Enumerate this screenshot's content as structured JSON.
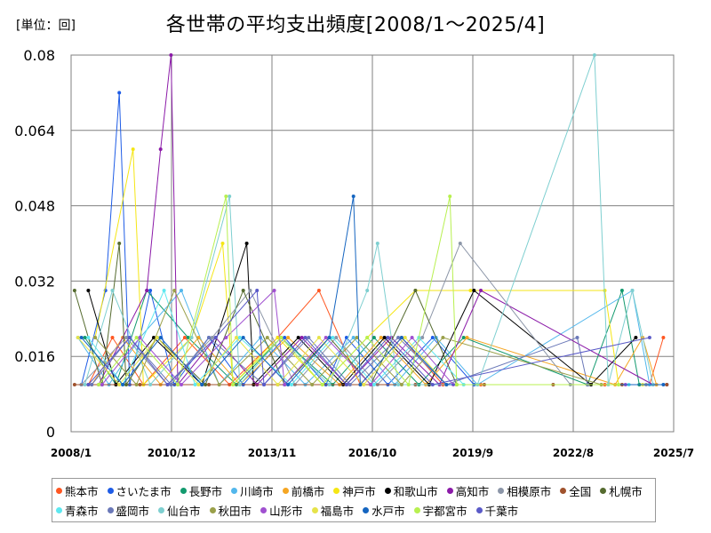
{
  "header": {
    "unit_label": "[単位：回]",
    "title": "各世帯の平均支出頻度[2008/1～2025/4]"
  },
  "chart_data": {
    "type": "line",
    "title": "各世帯の平均支出頻度[2008/1～2025/4]",
    "unit": "[単位：回]",
    "xlabel": "",
    "ylabel": "",
    "xlim": [
      "2008/1",
      "2025/7"
    ],
    "ylim": [
      0,
      0.08
    ],
    "grid": true,
    "legend_position": "bottom",
    "y_ticks": [
      "0",
      "0.016",
      "0.032",
      "0.048",
      "0.064",
      "0.08"
    ],
    "x_ticks": [
      "2008/1",
      "2010/12",
      "2013/11",
      "2016/10",
      "2019/9",
      "2022/8",
      "2025/7"
    ],
    "series": [
      {
        "name": "熊本市",
        "color": "#ff5722",
        "values": [
          [
            2008.5,
            0.01
          ],
          [
            2009.2,
            0.02
          ],
          [
            2010.1,
            0.01
          ],
          [
            2011.3,
            0.02
          ],
          [
            2012.6,
            0.01
          ],
          [
            2014.0,
            0.02
          ],
          [
            2015.2,
            0.03
          ],
          [
            2016.4,
            0.01
          ],
          [
            2017.6,
            0.02
          ],
          [
            2018.8,
            0.01
          ],
          [
            2019.9,
            0.01
          ],
          [
            2023.5,
            0.01
          ],
          [
            2024.8,
            0.01
          ],
          [
            2025.2,
            0.02
          ]
        ]
      },
      {
        "name": "さいたま市",
        "color": "#1e5ce6",
        "values": [
          [
            2008.3,
            0.01
          ],
          [
            2009.0,
            0.03
          ],
          [
            2009.4,
            0.072
          ],
          [
            2009.7,
            0.01
          ],
          [
            2010.3,
            0.03
          ],
          [
            2011.0,
            0.01
          ],
          [
            2012.0,
            0.02
          ],
          [
            2013.0,
            0.01
          ],
          [
            2014.2,
            0.02
          ],
          [
            2015.4,
            0.01
          ],
          [
            2016.0,
            0.02
          ],
          [
            2017.2,
            0.01
          ],
          [
            2018.5,
            0.02
          ],
          [
            2019.7,
            0.01
          ],
          [
            2024.9,
            0.01
          ],
          [
            2025.3,
            0.01
          ]
        ]
      },
      {
        "name": "長野市",
        "color": "#129a6e",
        "values": [
          [
            2008.4,
            0.02
          ],
          [
            2009.3,
            0.01
          ],
          [
            2010.2,
            0.03
          ],
          [
            2011.4,
            0.02
          ],
          [
            2012.8,
            0.01
          ],
          [
            2014.1,
            0.02
          ],
          [
            2015.6,
            0.01
          ],
          [
            2016.8,
            0.02
          ],
          [
            2018.1,
            0.01
          ],
          [
            2019.4,
            0.02
          ],
          [
            2023.0,
            0.01
          ],
          [
            2024.0,
            0.03
          ],
          [
            2024.5,
            0.01
          ]
        ]
      },
      {
        "name": "川崎市",
        "color": "#52b7ec",
        "values": [
          [
            2008.2,
            0.02
          ],
          [
            2009.1,
            0.01
          ],
          [
            2010.0,
            0.02
          ],
          [
            2011.2,
            0.03
          ],
          [
            2012.3,
            0.01
          ],
          [
            2013.5,
            0.02
          ],
          [
            2014.8,
            0.01
          ],
          [
            2016.2,
            0.02
          ],
          [
            2017.4,
            0.01
          ],
          [
            2018.6,
            0.02
          ],
          [
            2019.8,
            0.01
          ],
          [
            2024.3,
            0.03
          ],
          [
            2024.8,
            0.01
          ]
        ]
      },
      {
        "name": "前橋市",
        "color": "#f5a623",
        "values": [
          [
            2008.6,
            0.01
          ],
          [
            2009.5,
            0.02
          ],
          [
            2010.6,
            0.01
          ],
          [
            2011.7,
            0.02
          ],
          [
            2012.9,
            0.01
          ],
          [
            2014.3,
            0.02
          ],
          [
            2015.8,
            0.01
          ],
          [
            2017.0,
            0.02
          ],
          [
            2018.3,
            0.01
          ],
          [
            2019.5,
            0.02
          ],
          [
            2023.8,
            0.01
          ],
          [
            2024.6,
            0.02
          ],
          [
            2025.0,
            0.01
          ]
        ]
      },
      {
        "name": "神戸市",
        "color": "#f5e614",
        "values": [
          [
            2008.7,
            0.02
          ],
          [
            2009.8,
            0.06
          ],
          [
            2010.1,
            0.01
          ],
          [
            2011.5,
            0.02
          ],
          [
            2012.4,
            0.04
          ],
          [
            2012.7,
            0.01
          ],
          [
            2014.0,
            0.02
          ],
          [
            2015.3,
            0.01
          ],
          [
            2016.6,
            0.02
          ],
          [
            2018.0,
            0.03
          ],
          [
            2019.6,
            0.03
          ],
          [
            2023.5,
            0.03
          ],
          [
            2023.9,
            0.01
          ]
        ]
      },
      {
        "name": "和歌山市",
        "color": "#000000",
        "values": [
          [
            2008.5,
            0.03
          ],
          [
            2009.3,
            0.01
          ],
          [
            2010.4,
            0.02
          ],
          [
            2011.8,
            0.01
          ],
          [
            2013.1,
            0.04
          ],
          [
            2013.3,
            0.01
          ],
          [
            2014.6,
            0.02
          ],
          [
            2015.9,
            0.01
          ],
          [
            2017.1,
            0.02
          ],
          [
            2018.4,
            0.01
          ],
          [
            2019.7,
            0.03
          ],
          [
            2023.1,
            0.01
          ],
          [
            2024.4,
            0.02
          ]
        ]
      },
      {
        "name": "高知市",
        "color": "#8b1aa8",
        "values": [
          [
            2008.8,
            0.01
          ],
          [
            2010.2,
            0.03
          ],
          [
            2010.6,
            0.06
          ],
          [
            2010.9,
            0.08
          ],
          [
            2011.1,
            0.01
          ],
          [
            2012.2,
            0.02
          ],
          [
            2013.4,
            0.01
          ],
          [
            2014.7,
            0.02
          ],
          [
            2016.0,
            0.01
          ],
          [
            2017.3,
            0.02
          ],
          [
            2018.7,
            0.01
          ],
          [
            2019.9,
            0.03
          ],
          [
            2024.9,
            0.01
          ]
        ]
      },
      {
        "name": "相模原市",
        "color": "#8c96a8",
        "values": [
          [
            2008.3,
            0.01
          ],
          [
            2009.6,
            0.02
          ],
          [
            2010.8,
            0.01
          ],
          [
            2012.1,
            0.02
          ],
          [
            2013.2,
            0.03
          ],
          [
            2014.5,
            0.01
          ],
          [
            2015.7,
            0.02
          ],
          [
            2016.9,
            0.01
          ],
          [
            2018.2,
            0.02
          ],
          [
            2019.3,
            0.04
          ],
          [
            2022.5,
            0.01
          ],
          [
            2024.7,
            0.01
          ]
        ]
      },
      {
        "name": "全国",
        "color": "#a0522d",
        "values": [
          [
            2008.1,
            0.01
          ],
          [
            2010.0,
            0.01
          ],
          [
            2012.0,
            0.01
          ],
          [
            2014.0,
            0.01
          ],
          [
            2016.0,
            0.01
          ],
          [
            2018.0,
            0.01
          ],
          [
            2020.0,
            0.01
          ],
          [
            2022.0,
            0.01
          ],
          [
            2024.0,
            0.01
          ],
          [
            2025.3,
            0.01
          ]
        ]
      },
      {
        "name": "札幌市",
        "color": "#556b2f",
        "values": [
          [
            2008.1,
            0.03
          ],
          [
            2008.9,
            0.01
          ],
          [
            2009.4,
            0.04
          ],
          [
            2009.6,
            0.01
          ],
          [
            2010.5,
            0.02
          ],
          [
            2011.9,
            0.01
          ],
          [
            2013.0,
            0.03
          ],
          [
            2014.2,
            0.01
          ],
          [
            2015.5,
            0.02
          ],
          [
            2016.7,
            0.01
          ],
          [
            2018.0,
            0.03
          ],
          [
            2019.2,
            0.01
          ],
          [
            2023.0,
            0.01
          ]
        ]
      },
      {
        "name": "青森市",
        "color": "#5ee8f0",
        "values": [
          [
            2008.5,
            0.02
          ],
          [
            2009.5,
            0.01
          ],
          [
            2010.7,
            0.03
          ],
          [
            2011.6,
            0.01
          ],
          [
            2012.9,
            0.02
          ],
          [
            2014.4,
            0.01
          ],
          [
            2015.6,
            0.02
          ],
          [
            2016.8,
            0.01
          ],
          [
            2018.1,
            0.02
          ],
          [
            2019.4,
            0.01
          ],
          [
            2024.2,
            0.01
          ]
        ]
      },
      {
        "name": "盛岡市",
        "color": "#6a78b8",
        "values": [
          [
            2008.6,
            0.01
          ],
          [
            2009.7,
            0.02
          ],
          [
            2010.9,
            0.01
          ],
          [
            2012.0,
            0.02
          ],
          [
            2013.6,
            0.01
          ],
          [
            2014.9,
            0.02
          ],
          [
            2016.1,
            0.01
          ],
          [
            2017.5,
            0.02
          ],
          [
            2018.9,
            0.01
          ],
          [
            2022.7,
            0.02
          ],
          [
            2023.0,
            0.01
          ]
        ]
      },
      {
        "name": "仙台市",
        "color": "#7ecfd0",
        "values": [
          [
            2008.4,
            0.01
          ],
          [
            2009.2,
            0.03
          ],
          [
            2010.3,
            0.01
          ],
          [
            2011.5,
            0.02
          ],
          [
            2012.6,
            0.05
          ],
          [
            2012.9,
            0.01
          ],
          [
            2014.1,
            0.02
          ],
          [
            2015.5,
            0.01
          ],
          [
            2016.6,
            0.03
          ],
          [
            2016.9,
            0.04
          ],
          [
            2017.5,
            0.01
          ],
          [
            2019.8,
            0.01
          ],
          [
            2023.2,
            0.08
          ],
          [
            2023.6,
            0.01
          ],
          [
            2024.3,
            0.03
          ],
          [
            2024.9,
            0.01
          ]
        ]
      },
      {
        "name": "秋田市",
        "color": "#9aa04a",
        "values": [
          [
            2008.7,
            0.02
          ],
          [
            2009.9,
            0.01
          ],
          [
            2011.0,
            0.03
          ],
          [
            2012.3,
            0.01
          ],
          [
            2013.7,
            0.02
          ],
          [
            2015.0,
            0.01
          ],
          [
            2016.3,
            0.02
          ],
          [
            2017.6,
            0.01
          ],
          [
            2018.8,
            0.02
          ],
          [
            2023.4,
            0.01
          ]
        ]
      },
      {
        "name": "山形市",
        "color": "#a050d0",
        "values": [
          [
            2008.9,
            0.01
          ],
          [
            2010.0,
            0.02
          ],
          [
            2011.2,
            0.01
          ],
          [
            2012.5,
            0.02
          ],
          [
            2013.9,
            0.03
          ],
          [
            2014.2,
            0.01
          ],
          [
            2015.4,
            0.02
          ],
          [
            2016.7,
            0.01
          ],
          [
            2017.9,
            0.02
          ],
          [
            2019.1,
            0.01
          ],
          [
            2024.1,
            0.01
          ]
        ]
      },
      {
        "name": "福島市",
        "color": "#e6e34a",
        "values": [
          [
            2008.2,
            0.02
          ],
          [
            2009.4,
            0.01
          ],
          [
            2010.5,
            0.02
          ],
          [
            2011.7,
            0.01
          ],
          [
            2012.8,
            0.02
          ],
          [
            2014.0,
            0.01
          ],
          [
            2015.2,
            0.02
          ],
          [
            2016.5,
            0.01
          ],
          [
            2017.7,
            0.02
          ],
          [
            2018.9,
            0.01
          ],
          [
            2024.6,
            0.01
          ]
        ]
      },
      {
        "name": "水戸市",
        "color": "#1565c0",
        "values": [
          [
            2008.3,
            0.02
          ],
          [
            2009.5,
            0.01
          ],
          [
            2010.6,
            0.02
          ],
          [
            2011.8,
            0.01
          ],
          [
            2013.0,
            0.02
          ],
          [
            2014.3,
            0.01
          ],
          [
            2015.5,
            0.02
          ],
          [
            2016.2,
            0.05
          ],
          [
            2016.4,
            0.01
          ],
          [
            2017.6,
            0.02
          ],
          [
            2018.9,
            0.01
          ],
          [
            2025.2,
            0.01
          ]
        ]
      },
      {
        "name": "宇都宮市",
        "color": "#b8f050",
        "values": [
          [
            2008.8,
            0.01
          ],
          [
            2009.9,
            0.02
          ],
          [
            2011.1,
            0.01
          ],
          [
            2012.5,
            0.05
          ],
          [
            2012.7,
            0.01
          ],
          [
            2014.1,
            0.02
          ],
          [
            2015.3,
            0.01
          ],
          [
            2016.6,
            0.02
          ],
          [
            2017.8,
            0.01
          ],
          [
            2019.0,
            0.05
          ],
          [
            2019.2,
            0.01
          ],
          [
            2023.9,
            0.01
          ]
        ]
      },
      {
        "name": "千葉市",
        "color": "#5a5ac8",
        "values": [
          [
            2008.5,
            0.01
          ],
          [
            2009.7,
            0.02
          ],
          [
            2010.8,
            0.01
          ],
          [
            2012.2,
            0.02
          ],
          [
            2013.4,
            0.03
          ],
          [
            2013.6,
            0.01
          ],
          [
            2014.8,
            0.02
          ],
          [
            2016.0,
            0.01
          ],
          [
            2017.2,
            0.02
          ],
          [
            2018.5,
            0.01
          ],
          [
            2024.8,
            0.02
          ]
        ]
      }
    ]
  }
}
